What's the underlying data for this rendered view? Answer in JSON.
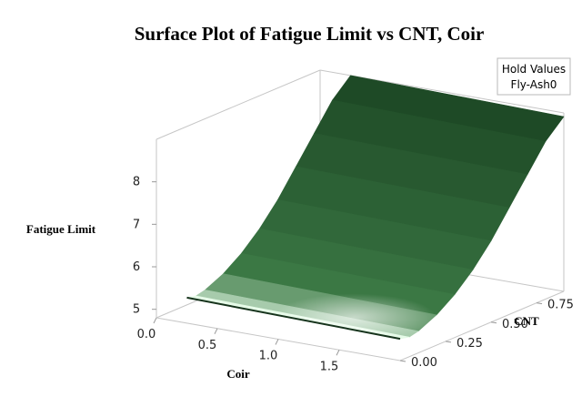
{
  "chart_data": {
    "type": "surface",
    "title": "Surface Plot of Fatigue Limit vs CNT, Coir",
    "xlabel": "Coir",
    "ylabel": "CNT",
    "zlabel": "Fatigue Limit",
    "x_ticks": [
      "0.0",
      "0.5",
      "1.0",
      "1.5"
    ],
    "y_ticks": [
      "0.00",
      "0.25",
      "0.50",
      "0.75"
    ],
    "z_ticks": [
      "5",
      "6",
      "7",
      "8"
    ],
    "xlim": [
      0,
      2
    ],
    "ylim": [
      0,
      0.9
    ],
    "zlim": [
      4.8,
      9.0
    ],
    "hold_values": {
      "heading": "Hold Values",
      "entry": "Fly-Ash0"
    },
    "surface": {
      "description_of_shape": "quadratic in CNT, nearly flat in Coir",
      "z_at_cnt": [
        {
          "cnt": 0.0,
          "z": 5.4
        },
        {
          "cnt": 0.05,
          "z": 5.35
        },
        {
          "cnt": 0.1,
          "z": 5.4
        },
        {
          "cnt": 0.2,
          "z": 5.6
        },
        {
          "cnt": 0.3,
          "z": 5.9
        },
        {
          "cnt": 0.4,
          "z": 6.3
        },
        {
          "cnt": 0.5,
          "z": 6.8
        },
        {
          "cnt": 0.6,
          "z": 7.4
        },
        {
          "cnt": 0.7,
          "z": 8.0
        },
        {
          "cnt": 0.8,
          "z": 8.6
        },
        {
          "cnt": 0.9,
          "z": 9.0
        }
      ],
      "coir_slope": -0.05
    },
    "colors": {
      "dark": "#1e4a26",
      "mid": "#3c7a45",
      "light": "#e6fbe8"
    },
    "grid": false
  }
}
